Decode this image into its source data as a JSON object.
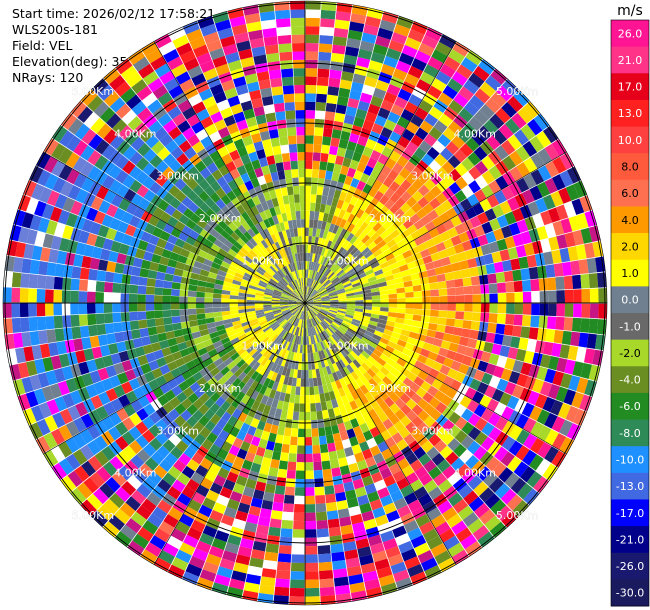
{
  "info": {
    "start_time": "Start time: 2026/02/12 17:58:21",
    "instrument": "WLS200s-181",
    "field": "Field: VEL",
    "elevation": "Elevation(deg): 35.00",
    "nrays": "NRays: 120"
  },
  "chart_data": {
    "type": "heatmap",
    "projection": "ppi-polar",
    "field": "VEL",
    "rays": 120,
    "range_labels": [
      "1.00Km",
      "2.00Km",
      "3.00Km",
      "4.00Km",
      "5.00Km"
    ],
    "colorbar": {
      "unit": "m/s",
      "ticks": [
        "26.0",
        "21.0",
        "17.0",
        "13.0",
        "10.0",
        "8.0",
        "6.0",
        "4.0",
        "2.0",
        "1.0",
        "0.0",
        "-1.0",
        "-2.0",
        "-4.0",
        "-6.0",
        "-8.0",
        "-10.0",
        "-13.0",
        "-17.0",
        "-21.0",
        "-26.0",
        "-30.0"
      ],
      "colors": [
        "#ff1493",
        "#ff3388",
        "#e6001a",
        "#ff2020",
        "#ff4040",
        "#ff5a3c",
        "#ff7050",
        "#ff9900",
        "#ffd700",
        "#ffff00",
        "#708090",
        "#696969",
        "#a8d82a",
        "#6b8e23",
        "#228b22",
        "#2e8b57",
        "#1e90ff",
        "#4169e1",
        "#0000ff",
        "#00008b",
        "#191970",
        "#1a1a5e"
      ]
    }
  }
}
